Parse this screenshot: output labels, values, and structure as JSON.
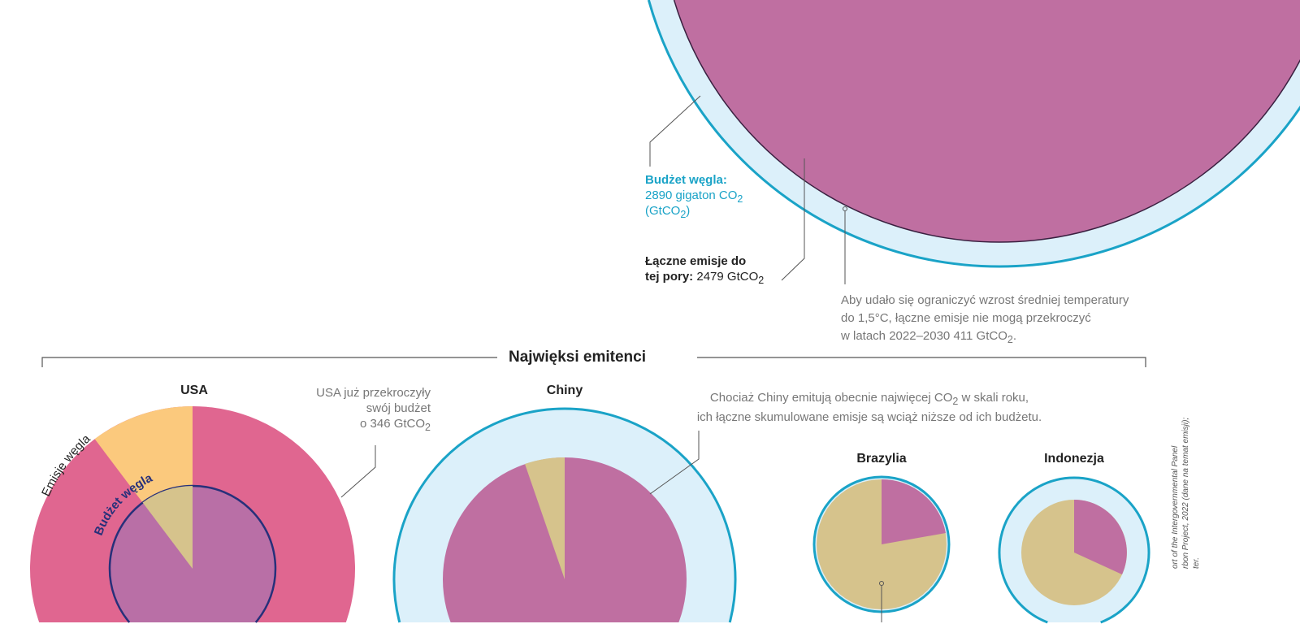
{
  "global": {
    "budget_title": "Budżet węgla:",
    "budget_value": "2890 gigaton CO",
    "budget_unit": "(GtCO",
    "emissions_label": "Łączne emisje do",
    "emissions_label2": "tej pory:",
    "emissions_value": "2479 GtCO",
    "note_line1": "Aby udało się ograniczyć wzrost średniej temperatury",
    "note_line2": "do 1,5°C, łączne emisje nie mogą przekroczyć",
    "note_line3": "w latach 2022–2030 411 GtCO"
  },
  "section_title": "Najwięksi emitenci",
  "countries": {
    "usa": {
      "name": "USA",
      "note1": "USA już przekroczyły",
      "note2": "swój budżet",
      "note3": "o 346 GtCO",
      "arc_emissions": "Emisje węgla",
      "arc_budget": "Budżet węgla"
    },
    "china": {
      "name": "Chiny",
      "note1": "Chociaż Chiny emitują obecnie najwięcej CO",
      "note1b": " w skali roku,",
      "note2": "ich łączne skumulowane emisje są wciąż niższe od ich budżetu."
    },
    "brazil": {
      "name": "Brazylia"
    },
    "indonesia": {
      "name": "Indonezja"
    }
  },
  "credits": {
    "line1": "ort of the Intergovernmental Panel",
    "line2": "rbon Project, 2022 (dane na temat emisji);",
    "line3": "ter."
  },
  "colors": {
    "budget_ring": "#dcf0fa",
    "budget_stroke": "#1aa3c7",
    "emissions": "#bf6fa1",
    "remaining": "#d6c38c",
    "usa_excess": "#e06690",
    "usa_wedge": "#fbc97d",
    "usa_budget_stroke": "#27307a"
  }
}
